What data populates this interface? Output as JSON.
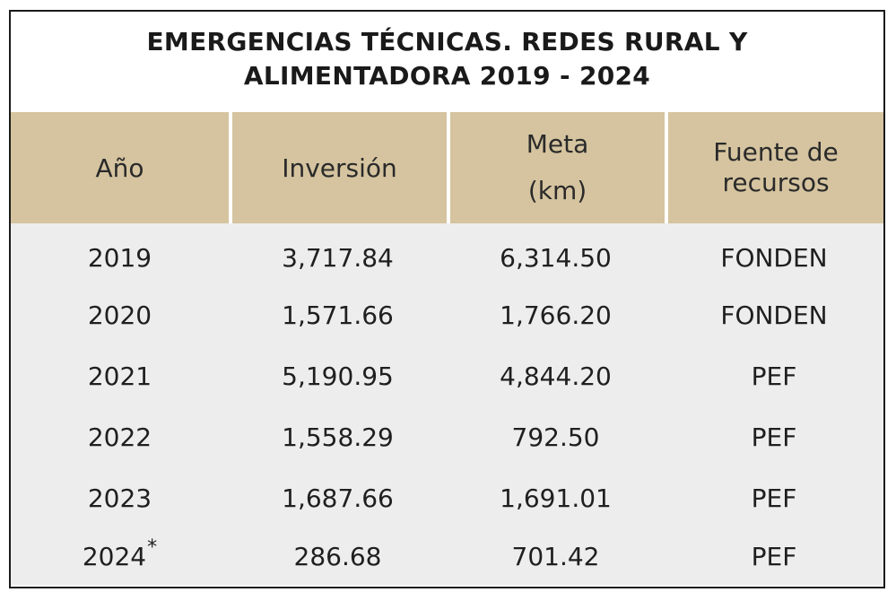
{
  "title": {
    "line1": "EMERGENCIAS TÉCNICAS. REDES RURAL Y",
    "line2": "ALIMENTADORA 2019 - 2024"
  },
  "headers": {
    "anio": "Año",
    "inversion": "Inversión",
    "meta_line1": "Meta",
    "meta_line2": "(km)",
    "fuente_line1": "Fuente de",
    "fuente_line2": "recursos"
  },
  "rows": [
    {
      "anio": "2019",
      "inversion": "3,717.84",
      "meta": "6,314.50",
      "fuente": "FONDEN"
    },
    {
      "anio": "2020",
      "inversion": "1,571.66",
      "meta": "1,766.20",
      "fuente": "FONDEN"
    },
    {
      "anio": "2021",
      "inversion": "5,190.95",
      "meta": "4,844.20",
      "fuente": "PEF"
    },
    {
      "anio": "2022",
      "inversion": "1,558.29",
      "meta": "792.50",
      "fuente": "PEF"
    },
    {
      "anio": "2023",
      "inversion": "1,687.66",
      "meta": "1,691.01",
      "fuente": "PEF"
    },
    {
      "anio": "2024",
      "anio_mark": "*",
      "inversion": "286.68",
      "meta": "701.42",
      "fuente": "PEF"
    }
  ],
  "colors": {
    "header_bg": "#d5c49f",
    "row_bg": "#ededed",
    "border": "#1a1a1a"
  }
}
